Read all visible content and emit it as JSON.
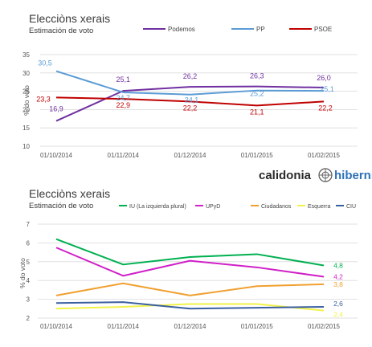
{
  "chart_data": [
    {
      "type": "line",
      "title": "Elecciòns xerais",
      "subtitle": "Estimación de voto",
      "xlabel": "",
      "ylabel": "% do voto",
      "categories": [
        "01/10/2014",
        "01/11/2014",
        "01/12/2014",
        "01/01/2015",
        "01/02/2015"
      ],
      "ylim": [
        10,
        35
      ],
      "yticks": [
        "10",
        "15",
        "20",
        "25",
        "30",
        "35"
      ],
      "grid": true,
      "legend_position": "top",
      "series": [
        {
          "name": "Podemos",
          "color": "#7030a0",
          "values": [
            16.9,
            25.1,
            26.2,
            26.3,
            26.0
          ],
          "labels": [
            "16,9",
            "25,1",
            "26,2",
            "26,3",
            "26,0"
          ]
        },
        {
          "name": "PP",
          "color": "#5b9bd5",
          "values": [
            30.5,
            24.7,
            24.1,
            25.2,
            25.1
          ],
          "labels": [
            "30,5",
            "24,7",
            "24,1",
            "25,2",
            "25,1"
          ]
        },
        {
          "name": "PSOE",
          "color": "#c00000",
          "values": [
            23.3,
            22.9,
            22.2,
            21.1,
            22.2
          ],
          "labels": [
            "23,3",
            "22,9",
            "22,2",
            "21,1",
            "22,2"
          ]
        }
      ]
    },
    {
      "type": "line",
      "title": "Elecciòns xerais",
      "subtitle": "Estimación de voto",
      "xlabel": "",
      "ylabel": "% do voto",
      "categories": [
        "01/10/2014",
        "01/11/2014",
        "01/12/2014",
        "01/01/2015",
        "01/02/2015"
      ],
      "ylim": [
        2,
        7
      ],
      "yticks": [
        "2",
        "3",
        "4",
        "5",
        "6",
        "7"
      ],
      "grid": true,
      "legend_position": "top",
      "series": [
        {
          "name": "IU (La izquierda plural)",
          "color": "#00b050",
          "values": [
            6.2,
            4.85,
            5.25,
            5.4,
            4.8
          ],
          "labels": [
            "",
            "",
            "",
            "",
            "4,8"
          ]
        },
        {
          "name": "UPyD",
          "color": "#d020c8",
          "values": [
            5.75,
            4.25,
            5.05,
            4.7,
            4.2
          ],
          "labels": [
            "",
            "",
            "",
            "",
            "4,2"
          ]
        },
        {
          "name": "Ciudadanos",
          "color": "#f0a030",
          "values": [
            3.2,
            3.85,
            3.2,
            3.7,
            3.8
          ],
          "labels": [
            "",
            "",
            "",
            "",
            "3,8"
          ]
        },
        {
          "name": "Esquerra",
          "color": "#f2f24a",
          "values": [
            2.5,
            2.6,
            2.75,
            2.75,
            2.4
          ],
          "labels": [
            "",
            "",
            "",
            "",
            "2,4"
          ]
        },
        {
          "name": "CIU",
          "color": "#3a5fa0",
          "values": [
            2.8,
            2.85,
            2.5,
            2.55,
            2.6
          ],
          "labels": [
            "",
            "",
            "",
            "",
            "2,6"
          ]
        }
      ]
    }
  ],
  "logo": {
    "left": "calidonia",
    "right": "hibernia"
  }
}
